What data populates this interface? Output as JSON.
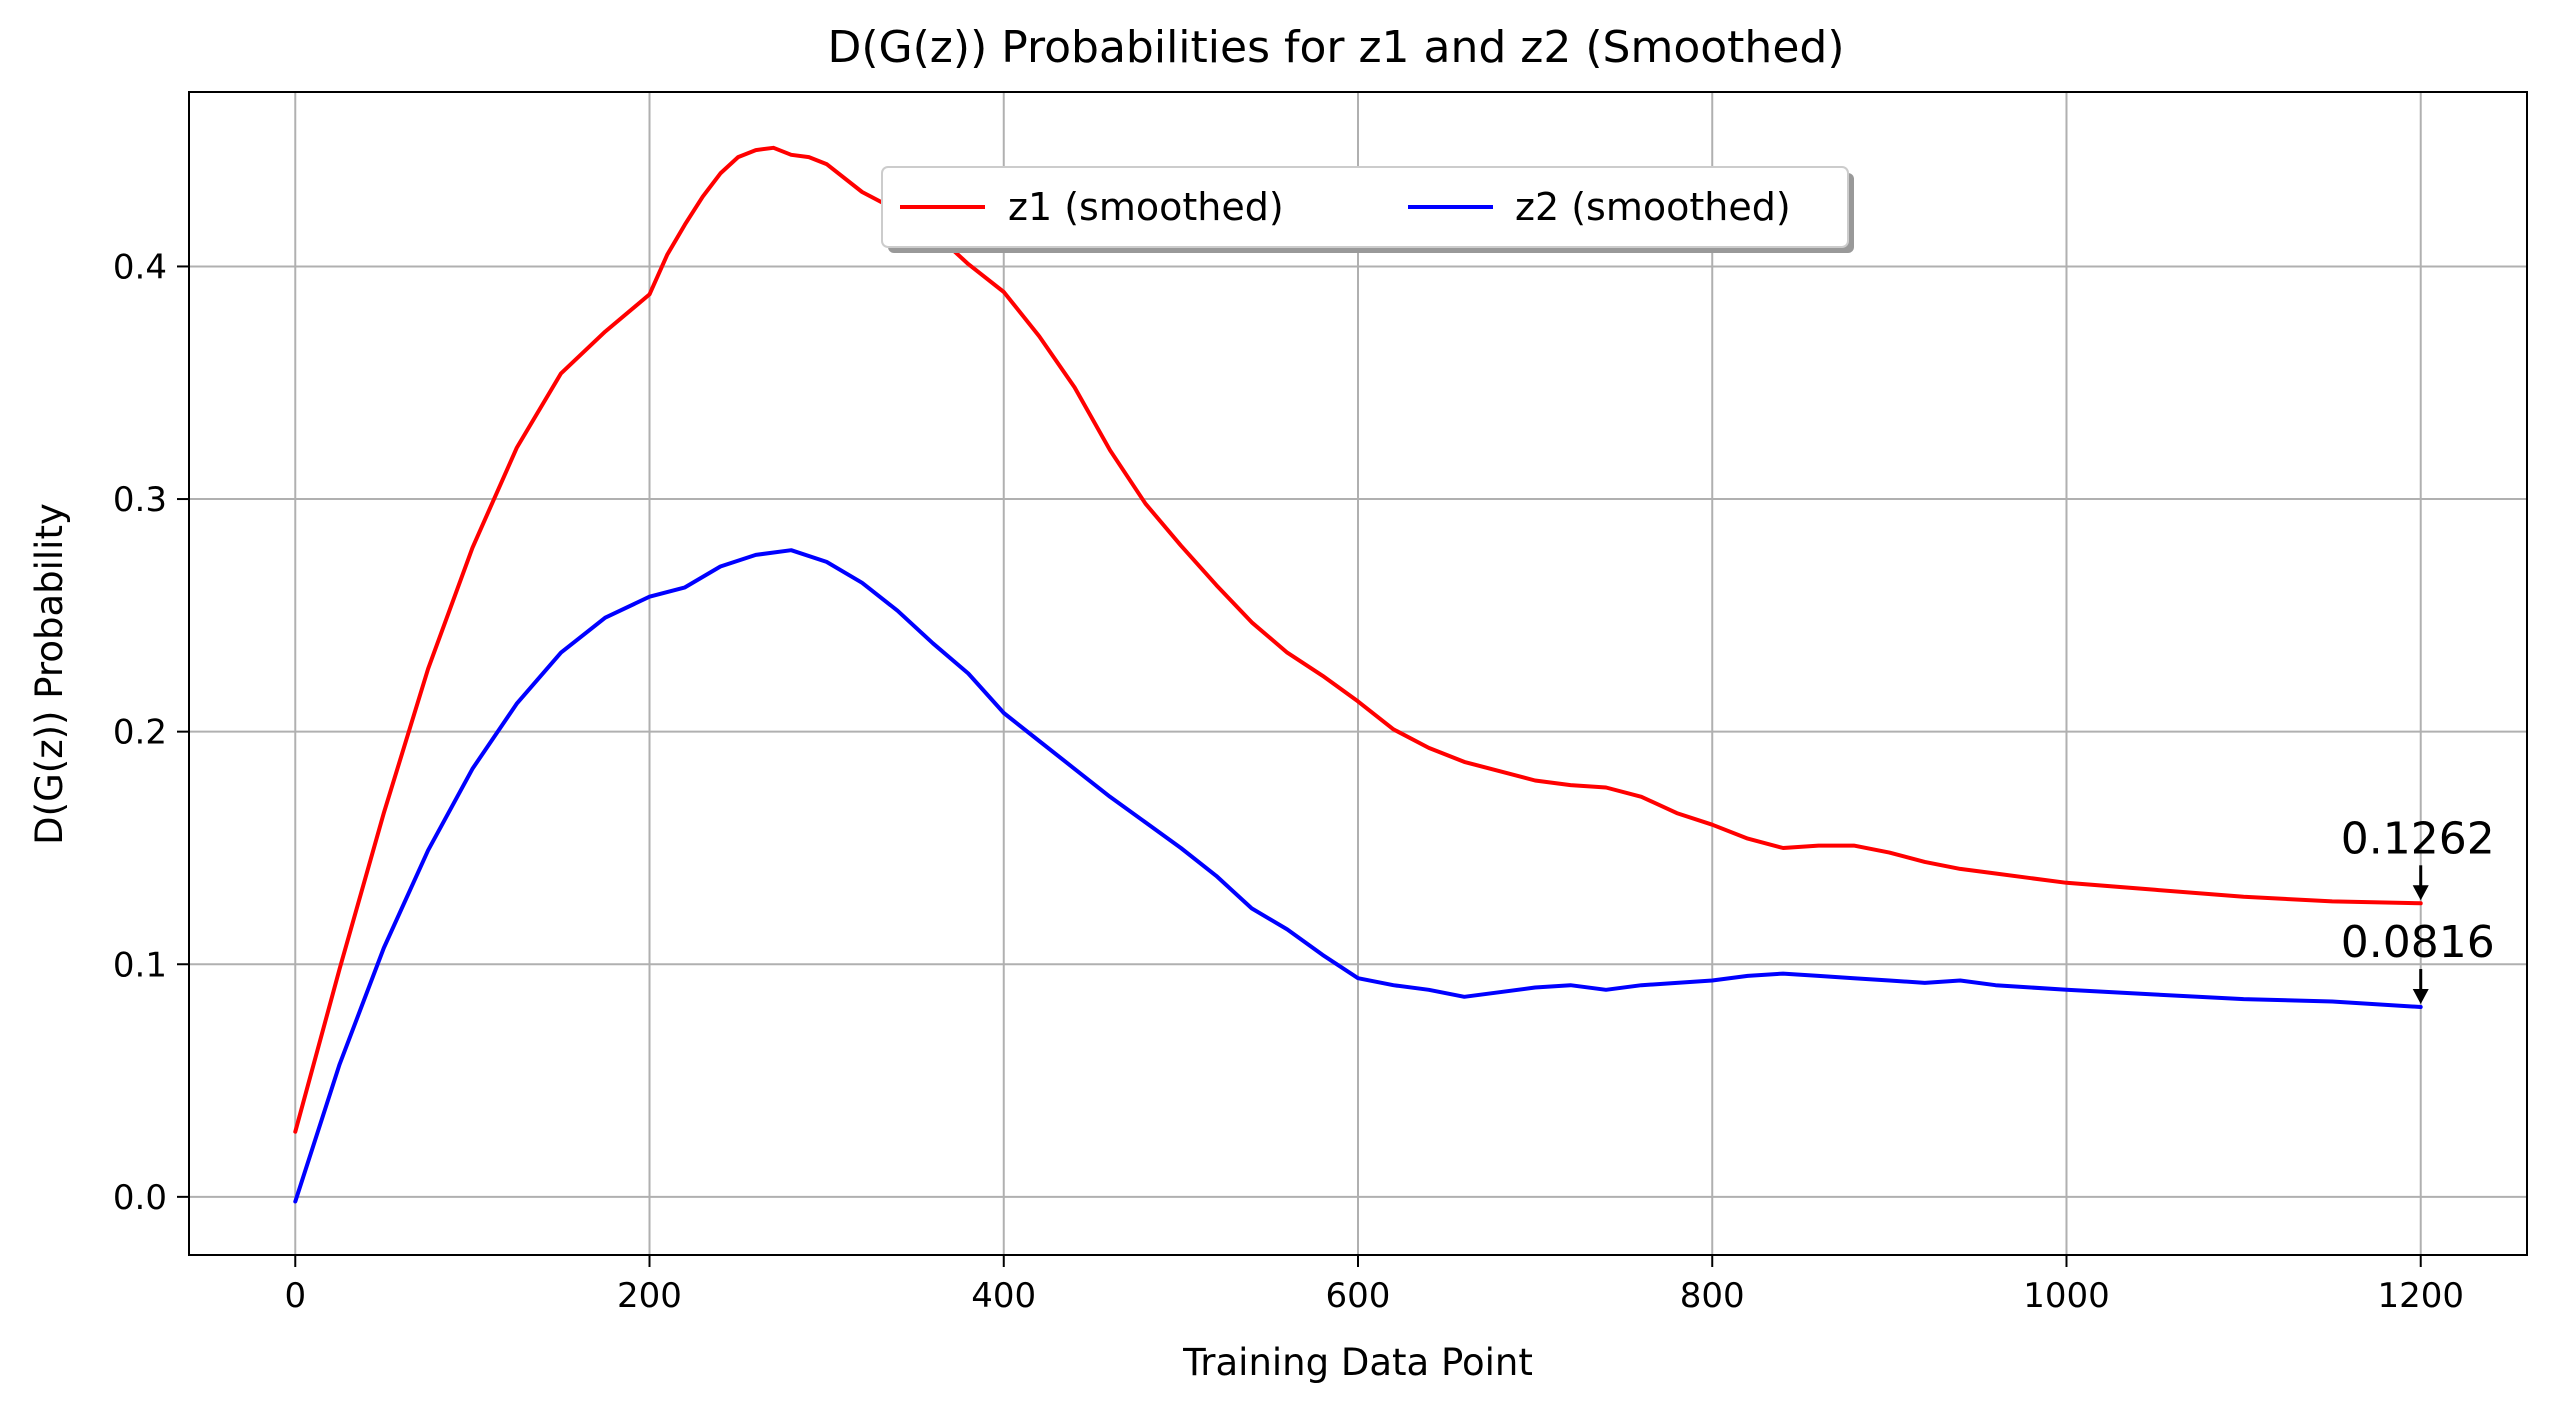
{
  "chart_data": {
    "type": "line",
    "title": "D(G(z)) Probabilities for z1 and z2 (Smoothed)",
    "xlabel": "Training Data Point",
    "ylabel": "D(G(z)) Probability",
    "xlim": [
      -60,
      1260
    ],
    "ylim": [
      -0.025,
      0.475
    ],
    "xticks": [
      0,
      200,
      400,
      600,
      800,
      1000,
      1200
    ],
    "xtick_labels": [
      "0",
      "200",
      "400",
      "600",
      "800",
      "1000",
      "1200"
    ],
    "yticks": [
      0.0,
      0.1,
      0.2,
      0.3,
      0.4
    ],
    "ytick_labels": [
      "0.0",
      "0.1",
      "0.2",
      "0.3",
      "0.4"
    ],
    "grid": true,
    "legend_position": "upper-center",
    "series": [
      {
        "name": "z1 (smoothed)",
        "color": "#ff0000",
        "x": [
          0,
          25,
          50,
          75,
          100,
          125,
          150,
          175,
          200,
          210,
          220,
          230,
          240,
          250,
          260,
          270,
          280,
          290,
          300,
          320,
          340,
          360,
          380,
          400,
          420,
          440,
          460,
          480,
          500,
          520,
          540,
          560,
          580,
          600,
          620,
          640,
          660,
          680,
          700,
          720,
          740,
          760,
          780,
          800,
          820,
          840,
          860,
          880,
          900,
          920,
          940,
          960,
          980,
          1000,
          1050,
          1100,
          1150,
          1200
        ],
        "values": [
          0.028,
          0.098,
          0.165,
          0.227,
          0.279,
          0.322,
          0.354,
          0.372,
          0.388,
          0.405,
          0.418,
          0.43,
          0.44,
          0.447,
          0.45,
          0.451,
          0.448,
          0.447,
          0.444,
          0.432,
          0.424,
          0.415,
          0.401,
          0.389,
          0.37,
          0.348,
          0.321,
          0.298,
          0.28,
          0.263,
          0.247,
          0.234,
          0.224,
          0.213,
          0.201,
          0.193,
          0.187,
          0.183,
          0.179,
          0.177,
          0.176,
          0.172,
          0.165,
          0.16,
          0.154,
          0.15,
          0.151,
          0.151,
          0.148,
          0.144,
          0.141,
          0.139,
          0.137,
          0.135,
          0.132,
          0.129,
          0.127,
          0.1262
        ]
      },
      {
        "name": "z2 (smoothed)",
        "color": "#0000ff",
        "x": [
          0,
          25,
          50,
          75,
          100,
          125,
          150,
          175,
          200,
          220,
          240,
          260,
          280,
          300,
          320,
          340,
          360,
          380,
          400,
          420,
          440,
          460,
          480,
          500,
          520,
          540,
          560,
          580,
          600,
          620,
          640,
          660,
          680,
          700,
          720,
          740,
          760,
          780,
          800,
          820,
          840,
          860,
          880,
          900,
          920,
          940,
          960,
          980,
          1000,
          1050,
          1100,
          1150,
          1200
        ],
        "values": [
          -0.002,
          0.057,
          0.107,
          0.149,
          0.184,
          0.212,
          0.234,
          0.249,
          0.258,
          0.262,
          0.271,
          0.276,
          0.278,
          0.273,
          0.264,
          0.252,
          0.238,
          0.225,
          0.208,
          0.196,
          0.184,
          0.172,
          0.161,
          0.15,
          0.138,
          0.124,
          0.115,
          0.104,
          0.094,
          0.091,
          0.089,
          0.086,
          0.088,
          0.09,
          0.091,
          0.089,
          0.091,
          0.092,
          0.093,
          0.095,
          0.096,
          0.095,
          0.094,
          0.093,
          0.092,
          0.093,
          0.091,
          0.09,
          0.089,
          0.087,
          0.085,
          0.084,
          0.0816
        ]
      }
    ],
    "annotations": [
      {
        "text": "0.1262",
        "x": 1200,
        "y": 0.1262
      },
      {
        "text": "0.0816",
        "x": 1200,
        "y": 0.0816
      }
    ]
  }
}
